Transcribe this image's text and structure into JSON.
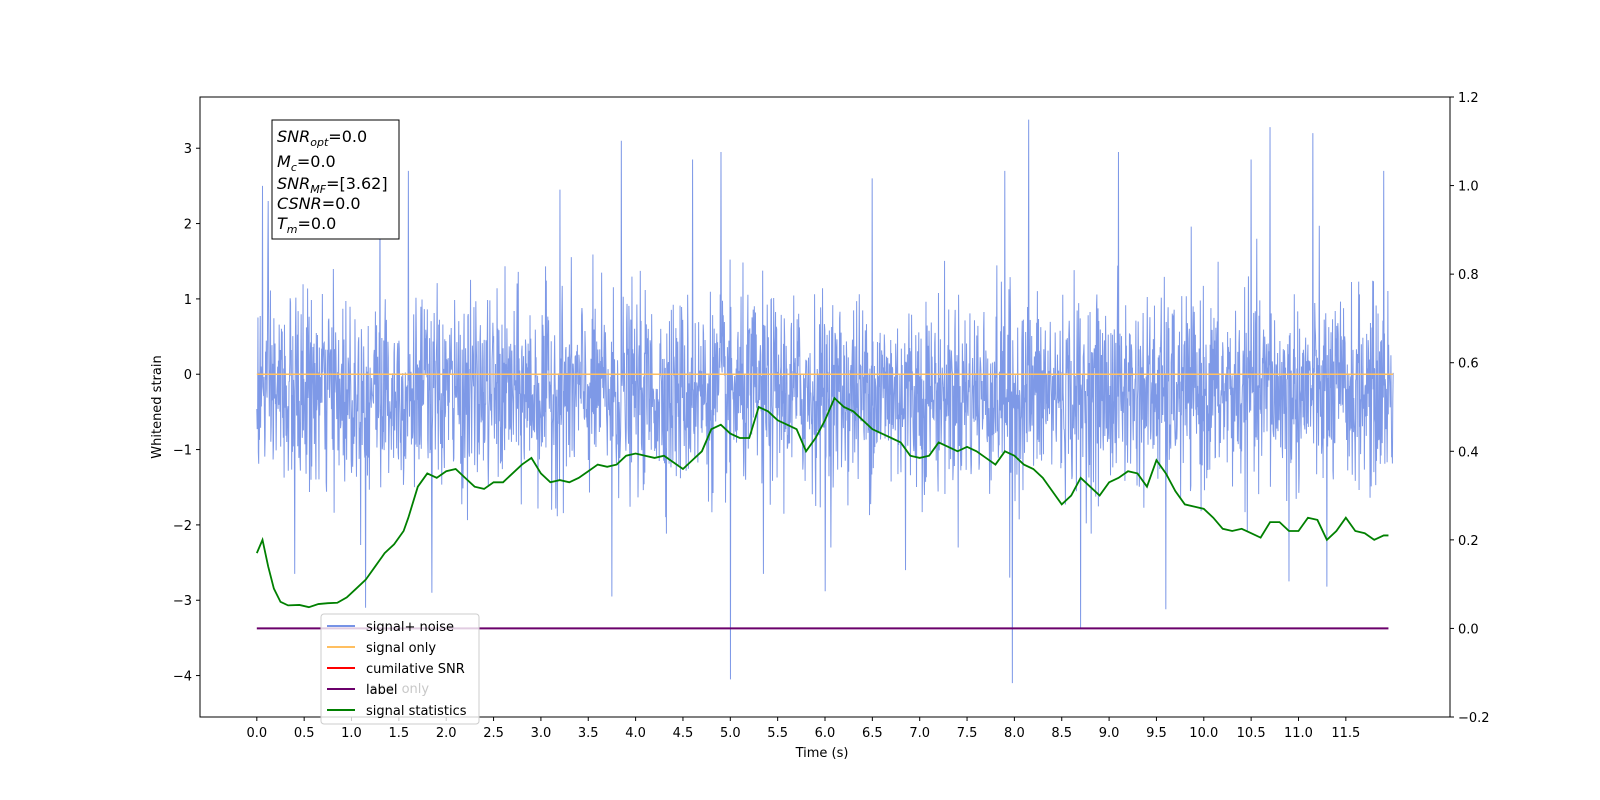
{
  "chart_data": {
    "type": "line",
    "xlabel": "Time (s)",
    "ylabel": "Whitened strain",
    "xlim": [
      -0.6,
      12.6
    ],
    "ylim": [
      -4.55,
      3.68
    ],
    "ylim_right": [
      -0.2,
      1.2
    ],
    "x_ticks": [
      0.0,
      0.5,
      1.0,
      1.5,
      2.0,
      2.5,
      3.0,
      3.5,
      4.0,
      4.5,
      5.0,
      5.5,
      6.0,
      6.5,
      7.0,
      7.5,
      8.0,
      8.5,
      9.0,
      9.5,
      10.0,
      10.5,
      11.0,
      11.5
    ],
    "x_tick_labels": [
      "0.0",
      "0.5",
      "1.0",
      "1.5",
      "2.0",
      "2.5",
      "3.0",
      "3.5",
      "4.0",
      "4.5",
      "5.0",
      "5.5",
      "6.0",
      "6.5",
      "7.0",
      "7.5",
      "8.0",
      "8.5",
      "9.0",
      "9.5",
      "10.0",
      "10.5",
      "11.0",
      "11.5"
    ],
    "y_ticks": [
      -4,
      -3,
      -2,
      -1,
      0,
      1,
      2,
      3
    ],
    "y_tick_labels": [
      "−4",
      "−3",
      "−2",
      "−1",
      "0",
      "1",
      "2",
      "3"
    ],
    "y_right_ticks": [
      -0.2,
      0.0,
      0.2,
      0.4,
      0.6,
      0.8,
      1.0,
      1.2
    ],
    "y_right_tick_labels": [
      "−0.2",
      "0.0",
      "0.2",
      "0.4",
      "0.6",
      "0.8",
      "1.0",
      "1.2"
    ],
    "grid": false,
    "legend_placement": "lower-left",
    "series": [
      {
        "name": "signal+ noise",
        "axis": "left",
        "color": "#7793e6",
        "style": "dense noise trace, roughly symmetric about 0 with slight negative offset",
        "x_range": [
          0.0,
          12.0
        ],
        "typical_upper": 1.3,
        "typical_lower": -1.8,
        "peak_values": [
          {
            "x": 0.06,
            "y": 2.5
          },
          {
            "x": 0.12,
            "y": 2.3
          },
          {
            "x": 1.3,
            "y": 2.6
          },
          {
            "x": 1.6,
            "y": 2.7
          },
          {
            "x": 3.2,
            "y": 2.45
          },
          {
            "x": 3.85,
            "y": 3.1
          },
          {
            "x": 4.6,
            "y": 2.85
          },
          {
            "x": 4.9,
            "y": 2.95
          },
          {
            "x": 5.35,
            "y": 3.2
          },
          {
            "x": 6.5,
            "y": 2.6
          },
          {
            "x": 6.85,
            "y": 2.95
          },
          {
            "x": 7.9,
            "y": 2.7
          },
          {
            "x": 8.15,
            "y": 3.38
          },
          {
            "x": 9.1,
            "y": 2.95
          },
          {
            "x": 10.5,
            "y": 2.85
          },
          {
            "x": 10.7,
            "y": 3.28
          },
          {
            "x": 11.15,
            "y": 3.2
          },
          {
            "x": 11.9,
            "y": 2.7
          }
        ],
        "trough_values": [
          {
            "x": 0.4,
            "y": -2.65
          },
          {
            "x": 1.15,
            "y": -3.1
          },
          {
            "x": 1.85,
            "y": -2.9
          },
          {
            "x": 3.75,
            "y": -2.95
          },
          {
            "x": 5.0,
            "y": -4.05
          },
          {
            "x": 5.35,
            "y": -2.65
          },
          {
            "x": 6.0,
            "y": -2.88
          },
          {
            "x": 6.85,
            "y": -2.6
          },
          {
            "x": 7.95,
            "y": -2.7
          },
          {
            "x": 7.98,
            "y": -4.1
          },
          {
            "x": 8.7,
            "y": -3.38
          },
          {
            "x": 9.6,
            "y": -3.12
          },
          {
            "x": 11.3,
            "y": -2.82
          },
          {
            "x": 10.9,
            "y": -2.75
          }
        ]
      },
      {
        "name": "signal only",
        "axis": "left",
        "color": "#ffbf60",
        "x": [
          0.0,
          12.0
        ],
        "y": [
          0.0,
          0.0
        ]
      },
      {
        "name": "cumilative SNR",
        "axis": "right",
        "color": "#ff0000",
        "x": [],
        "y": []
      },
      {
        "name": "label",
        "axis": "right",
        "color": "#6b006b",
        "x": [
          0.0,
          11.95
        ],
        "y": [
          0.0,
          0.0
        ]
      },
      {
        "name": "signal statistics",
        "axis": "right",
        "color": "#008000",
        "x": [
          0.0,
          0.06,
          0.12,
          0.18,
          0.25,
          0.33,
          0.45,
          0.55,
          0.65,
          0.75,
          0.85,
          0.95,
          1.05,
          1.15,
          1.25,
          1.35,
          1.45,
          1.55,
          1.6,
          1.7,
          1.8,
          1.9,
          2.0,
          2.1,
          2.2,
          2.3,
          2.4,
          2.5,
          2.6,
          2.7,
          2.8,
          2.9,
          3.0,
          3.1,
          3.2,
          3.3,
          3.4,
          3.5,
          3.6,
          3.7,
          3.8,
          3.9,
          4.0,
          4.1,
          4.2,
          4.3,
          4.4,
          4.5,
          4.6,
          4.7,
          4.8,
          4.9,
          5.0,
          5.1,
          5.2,
          5.3,
          5.4,
          5.5,
          5.6,
          5.7,
          5.8,
          5.9,
          6.0,
          6.1,
          6.2,
          6.3,
          6.4,
          6.5,
          6.6,
          6.7,
          6.8,
          6.9,
          7.0,
          7.1,
          7.2,
          7.3,
          7.4,
          7.5,
          7.6,
          7.7,
          7.8,
          7.9,
          8.0,
          8.1,
          8.2,
          8.3,
          8.4,
          8.5,
          8.6,
          8.7,
          8.8,
          8.9,
          9.0,
          9.1,
          9.2,
          9.3,
          9.4,
          9.5,
          9.6,
          9.7,
          9.8,
          9.9,
          10.0,
          10.1,
          10.2,
          10.3,
          10.4,
          10.5,
          10.6,
          10.7,
          10.8,
          10.9,
          11.0,
          11.1,
          11.2,
          11.3,
          11.4,
          11.5,
          11.6,
          11.7,
          11.8,
          11.9,
          11.95
        ],
        "y": [
          0.17,
          0.2,
          0.14,
          0.09,
          0.06,
          0.052,
          0.053,
          0.048,
          0.055,
          0.057,
          0.058,
          0.07,
          0.09,
          0.11,
          0.14,
          0.17,
          0.19,
          0.22,
          0.25,
          0.32,
          0.35,
          0.34,
          0.355,
          0.36,
          0.34,
          0.32,
          0.315,
          0.33,
          0.33,
          0.35,
          0.37,
          0.385,
          0.35,
          0.33,
          0.335,
          0.33,
          0.34,
          0.355,
          0.37,
          0.365,
          0.37,
          0.39,
          0.395,
          0.39,
          0.385,
          0.39,
          0.375,
          0.36,
          0.38,
          0.4,
          0.45,
          0.46,
          0.44,
          0.43,
          0.43,
          0.5,
          0.49,
          0.47,
          0.46,
          0.45,
          0.4,
          0.43,
          0.47,
          0.52,
          0.5,
          0.49,
          0.47,
          0.45,
          0.44,
          0.43,
          0.42,
          0.39,
          0.385,
          0.39,
          0.42,
          0.41,
          0.4,
          0.41,
          0.4,
          0.385,
          0.37,
          0.4,
          0.39,
          0.37,
          0.36,
          0.34,
          0.31,
          0.28,
          0.3,
          0.34,
          0.32,
          0.3,
          0.33,
          0.34,
          0.355,
          0.35,
          0.32,
          0.38,
          0.35,
          0.31,
          0.28,
          0.275,
          0.27,
          0.25,
          0.225,
          0.22,
          0.225,
          0.215,
          0.205,
          0.24,
          0.24,
          0.22,
          0.22,
          0.25,
          0.245,
          0.2,
          0.22,
          0.25,
          0.22,
          0.215,
          0.2,
          0.21,
          0.21
        ]
      }
    ],
    "legend_entries": [
      "signal+ noise",
      "signal only",
      "cumilative SNR",
      "label",
      "signal statistics"
    ],
    "legend_hidden_text": "label only",
    "stats_box": {
      "snr_opt": {
        "var": "SNR",
        "sub": "opt",
        "value": "=0.0"
      },
      "mc": {
        "var": "M",
        "sub": "c",
        "value": "=0.0"
      },
      "snr_mf": {
        "var": "SNR",
        "sub": "MF",
        "value": "=[3.62]"
      },
      "csnr": {
        "var": "CSNR",
        "sub": "",
        "value": "=0.0"
      },
      "tm": {
        "var": "T",
        "sub": "m",
        "value": "=0.0"
      }
    }
  }
}
